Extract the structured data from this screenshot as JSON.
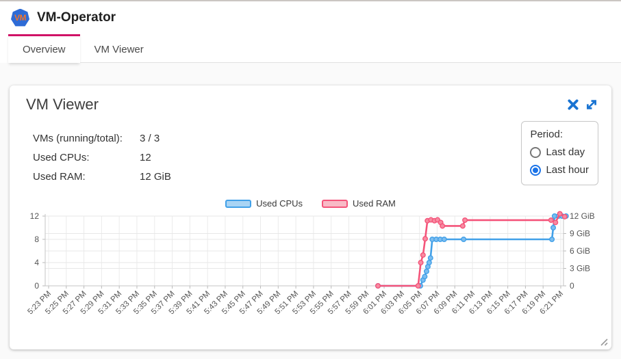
{
  "header": {
    "title": "VM-Operator",
    "logo_text": "VM"
  },
  "tabs": [
    {
      "label": "Overview",
      "active": true
    },
    {
      "label": "VM Viewer",
      "active": false
    }
  ],
  "card": {
    "title": "VM Viewer",
    "stats": [
      {
        "label": "VMs (running/total):",
        "value": "3 / 3"
      },
      {
        "label": "Used CPUs:",
        "value": "12"
      },
      {
        "label": "Used RAM:",
        "value": "12 GiB"
      }
    ],
    "period": {
      "label": "Period:",
      "options": [
        {
          "label": "Last day",
          "selected": false
        },
        {
          "label": "Last hour",
          "selected": true
        }
      ]
    }
  },
  "colors": {
    "tab_indicator": "#d01266",
    "icon_blue": "#1a74d2",
    "radio_selected": "#1a73e8",
    "logo_blue": "#2e6bd6"
  },
  "chart_data": {
    "type": "line",
    "legend": [
      {
        "name": "Used CPUs",
        "color": "#41a0e8",
        "fill": "#a9d4f4"
      },
      {
        "name": "Used RAM",
        "color": "#f4547a",
        "fill": "#f8bac6"
      }
    ],
    "x_tick_labels": [
      "5:23 PM",
      "5:25 PM",
      "5:27 PM",
      "5:29 PM",
      "5:31 PM",
      "5:33 PM",
      "5:35 PM",
      "5:37 PM",
      "5:39 PM",
      "5:41 PM",
      "5:43 PM",
      "5:45 PM",
      "5:47 PM",
      "5:49 PM",
      "5:51 PM",
      "5:53 PM",
      "5:55 PM",
      "5:57 PM",
      "5:59 PM",
      "6:01 PM",
      "6:03 PM",
      "6:05 PM",
      "6:07 PM",
      "6:09 PM",
      "6:11 PM",
      "6:13 PM",
      "6:15 PM",
      "6:17 PM",
      "6:19 PM",
      "6:21 PM"
    ],
    "x_minutes_per_tick": 2,
    "y_left": {
      "ticks": [
        0,
        4,
        8,
        12
      ],
      "labels": [
        "0",
        "4",
        "8",
        "12"
      ],
      "max": 12
    },
    "y_right": {
      "ticks": [
        0,
        3,
        6,
        9,
        12
      ],
      "labels": [
        "0",
        "3 GiB",
        "6 GiB",
        "9 GiB",
        "12 GiB"
      ],
      "max": 12
    },
    "series": [
      {
        "name": "Used CPUs",
        "axis": "left",
        "color": "#41a0e8",
        "marker_fill": "#7cbdf0",
        "points": [
          [
            37.3,
            0
          ],
          [
            42.1,
            0
          ],
          [
            42.4,
            1
          ],
          [
            42.6,
            1.6
          ],
          [
            42.8,
            2.5
          ],
          [
            42.95,
            3.3
          ],
          [
            43.1,
            4
          ],
          [
            43.25,
            4.8
          ],
          [
            43.45,
            8
          ],
          [
            43.9,
            8
          ],
          [
            44.35,
            8
          ],
          [
            44.8,
            8
          ],
          [
            47.0,
            8
          ],
          [
            57.0,
            8
          ],
          [
            57.15,
            10
          ],
          [
            57.3,
            12
          ],
          [
            57.75,
            12
          ],
          [
            58.15,
            12
          ],
          [
            58.6,
            12
          ]
        ]
      },
      {
        "name": "Used RAM",
        "axis": "right",
        "color": "#f4547a",
        "marker_fill": "#f78ba1",
        "points": [
          [
            37.3,
            0
          ],
          [
            41.85,
            0
          ],
          [
            42.15,
            4
          ],
          [
            42.4,
            5.3
          ],
          [
            42.65,
            8.1
          ],
          [
            42.9,
            11.2
          ],
          [
            43.3,
            11.35
          ],
          [
            43.7,
            11.2
          ],
          [
            44.05,
            11.35
          ],
          [
            44.4,
            10.9
          ],
          [
            44.6,
            10.3
          ],
          [
            46.9,
            10.3
          ],
          [
            47.15,
            11.3
          ],
          [
            56.9,
            11.3
          ],
          [
            57.4,
            10.9
          ],
          [
            57.9,
            12.4
          ],
          [
            58.45,
            11.9
          ]
        ]
      }
    ]
  }
}
